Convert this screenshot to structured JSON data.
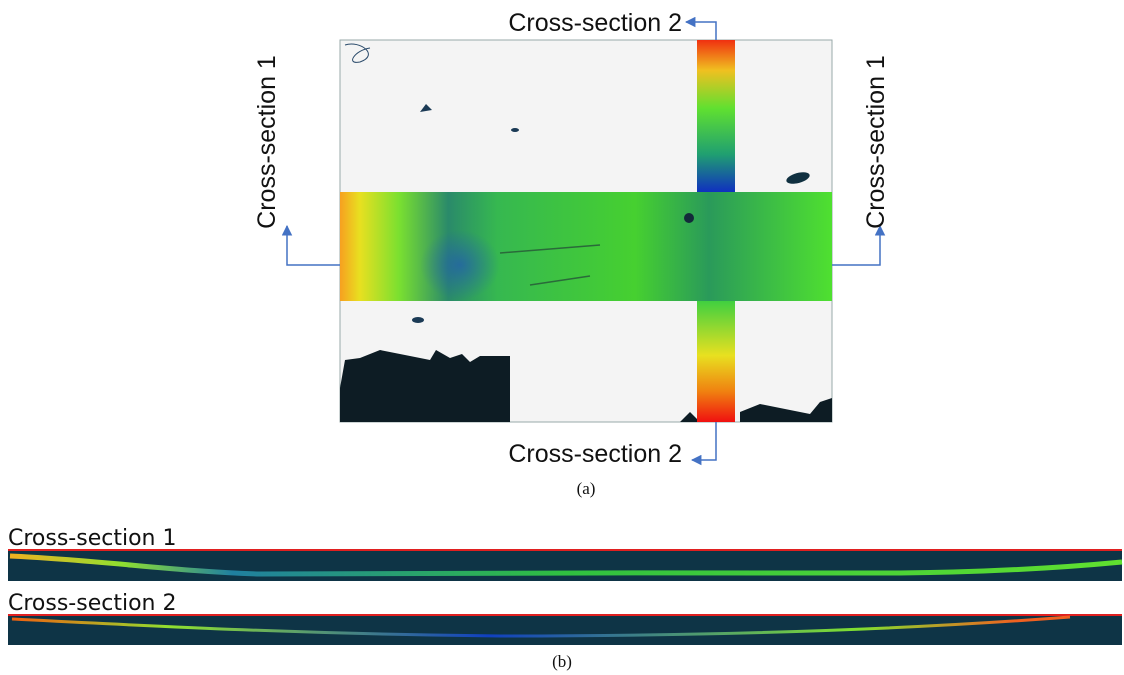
{
  "panel_a": {
    "labels": {
      "top": "Cross-section 2",
      "left": "Cross-section 1",
      "right": "Cross-section 1",
      "bottom": "Cross-section 2"
    },
    "caption": "(a)"
  },
  "panel_b": {
    "sections": [
      {
        "label": "Cross-section 1"
      },
      {
        "label": "Cross-section 2"
      }
    ],
    "caption": "(b)"
  }
}
